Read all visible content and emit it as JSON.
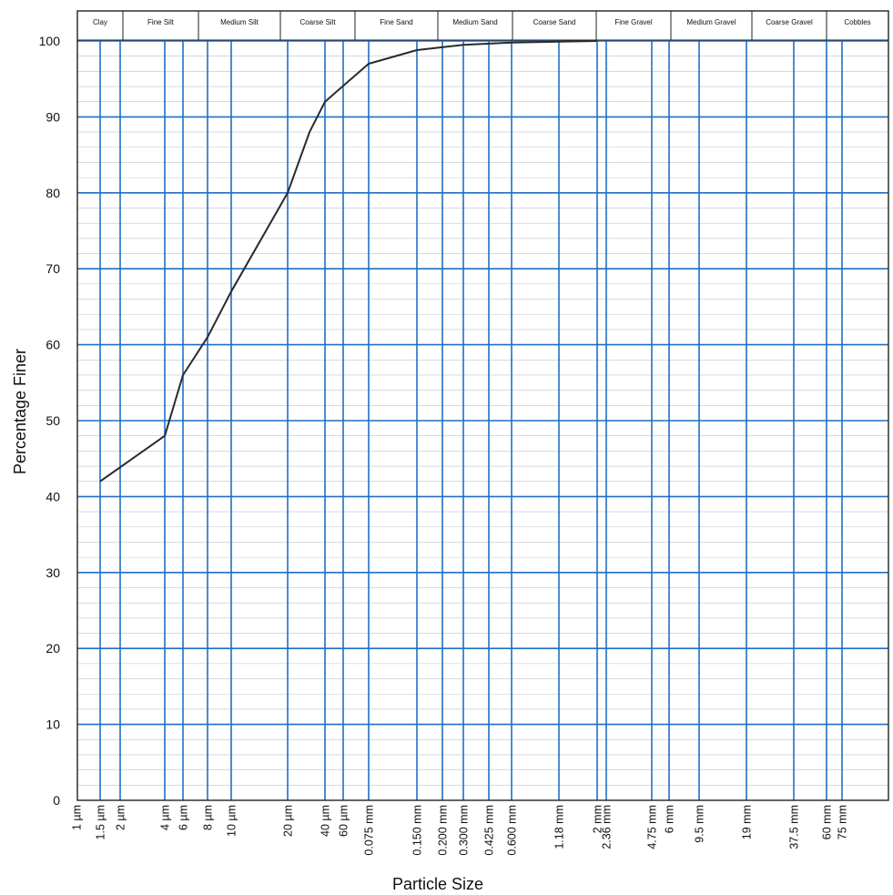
{
  "chart_data": {
    "type": "line",
    "title": "",
    "xlabel": "Particle Size",
    "ylabel": "Percentage Finer",
    "x_scale": "log",
    "ylim": [
      0,
      100
    ],
    "y_ticks": [
      "0",
      "10",
      "20",
      "30",
      "40",
      "50",
      "60",
      "70",
      "80",
      "90",
      "100"
    ],
    "size_bands": [
      "Clay",
      "Fine Silt",
      "Medium Silt",
      "Coarse Silt",
      "Fine Sand",
      "Medium Sand",
      "Coarse Sand",
      "Fine Gravel",
      "Medium Gravel",
      "Coarse Gravel",
      "Cobbles"
    ],
    "x_ticks": [
      {
        "label": "1 µm",
        "size_mm": 0.001
      },
      {
        "label": "1.5 µm",
        "size_mm": 0.0015
      },
      {
        "label": "2 µm",
        "size_mm": 0.002
      },
      {
        "label": "4 µm",
        "size_mm": 0.004
      },
      {
        "label": "6 µm",
        "size_mm": 0.006
      },
      {
        "label": "8 µm",
        "size_mm": 0.008
      },
      {
        "label": "10 µm",
        "size_mm": 0.01
      },
      {
        "label": "20 µm",
        "size_mm": 0.02
      },
      {
        "label": "40 µm",
        "size_mm": 0.04
      },
      {
        "label": "60 µm",
        "size_mm": 0.06
      },
      {
        "label": "0.075 mm",
        "size_mm": 0.075
      },
      {
        "label": "0.150 mm",
        "size_mm": 0.15
      },
      {
        "label": "0.200 mm",
        "size_mm": 0.2
      },
      {
        "label": "0.300 mm",
        "size_mm": 0.3
      },
      {
        "label": "0.425 mm",
        "size_mm": 0.425
      },
      {
        "label": "0.600 mm",
        "size_mm": 0.6
      },
      {
        "label": "1.18 mm",
        "size_mm": 1.18
      },
      {
        "label": "2 mm",
        "size_mm": 2
      },
      {
        "label": "2.36 mm",
        "size_mm": 2.36
      },
      {
        "label": "4.75 mm",
        "size_mm": 4.75
      },
      {
        "label": "6 mm",
        "size_mm": 6
      },
      {
        "label": "9.5 mm",
        "size_mm": 9.5
      },
      {
        "label": "19 mm",
        "size_mm": 19
      },
      {
        "label": "37.5 mm",
        "size_mm": 37.5
      },
      {
        "label": "60 mm",
        "size_mm": 60
      },
      {
        "label": "75 mm",
        "size_mm": 75
      }
    ],
    "series": [
      {
        "points": [
          {
            "x": 0.0015,
            "y": 42
          },
          {
            "x": 0.004,
            "y": 48
          },
          {
            "x": 0.006,
            "y": 56
          },
          {
            "x": 0.008,
            "y": 61
          },
          {
            "x": 0.01,
            "y": 67
          },
          {
            "x": 0.02,
            "y": 80
          },
          {
            "x": 0.03,
            "y": 88
          },
          {
            "x": 0.04,
            "y": 92
          },
          {
            "x": 0.075,
            "y": 97
          },
          {
            "x": 0.15,
            "y": 98.8
          },
          {
            "x": 0.3,
            "y": 99.5
          },
          {
            "x": 0.6,
            "y": 99.8
          },
          {
            "x": 1.18,
            "y": 99.9
          },
          {
            "x": 2,
            "y": 100
          }
        ]
      }
    ],
    "grid": true,
    "colors": {
      "grid_major": "#1f6fc4",
      "grid_minor": "#b8c4d2",
      "curve": "#2a2a2a"
    }
  }
}
